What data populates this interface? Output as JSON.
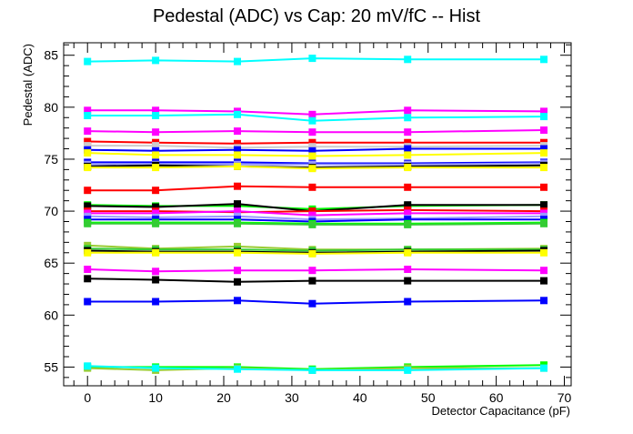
{
  "chart_data": {
    "type": "line",
    "title": "Pedestal (ADC) vs Cap: 20 mV/fC -- Hist",
    "xlabel": "Detector Capacitance (pF)",
    "ylabel": "Pedestal (ADC)",
    "xlim": [
      -3.5,
      71
    ],
    "ylim": [
      53.2,
      86.2
    ],
    "x_ticks": [
      0,
      10,
      20,
      30,
      40,
      50,
      60,
      70
    ],
    "y_ticks": [
      55,
      60,
      65,
      70,
      75,
      80,
      85
    ],
    "grid": false,
    "legend": "none",
    "x": [
      0,
      10,
      22,
      33,
      47,
      67
    ],
    "series": [
      {
        "color": "#00ffff",
        "values": [
          84.4,
          84.5,
          84.4,
          84.7,
          84.6,
          84.6
        ]
      },
      {
        "color": "#ff00ff",
        "values": [
          79.7,
          79.7,
          79.6,
          79.3,
          79.7,
          79.6
        ]
      },
      {
        "color": "#00ffff",
        "values": [
          79.2,
          79.2,
          79.3,
          78.7,
          79.0,
          79.1
        ]
      },
      {
        "color": "#ff00ff",
        "values": [
          77.7,
          77.6,
          77.7,
          77.6,
          77.6,
          77.8
        ]
      },
      {
        "color": "#ff0000",
        "values": [
          76.7,
          76.6,
          76.5,
          76.6,
          76.6,
          76.6
        ]
      },
      {
        "color": "#cccccc",
        "values": [
          76.3,
          76.3,
          76.1,
          76.2,
          76.2,
          76.3
        ]
      },
      {
        "color": "#0000ff",
        "values": [
          75.9,
          75.8,
          75.9,
          75.8,
          76.0,
          76.0
        ]
      },
      {
        "color": "#ffff00",
        "values": [
          75.6,
          75.4,
          75.4,
          75.3,
          75.4,
          75.6
        ]
      },
      {
        "color": "#0000ff",
        "values": [
          74.7,
          74.7,
          74.7,
          74.6,
          74.6,
          74.7
        ]
      },
      {
        "color": "#9999ff",
        "values": [
          74.5,
          74.5,
          74.5,
          74.5,
          74.5,
          74.6
        ]
      },
      {
        "color": "#000000",
        "values": [
          74.3,
          74.4,
          74.3,
          74.2,
          74.3,
          74.4
        ]
      },
      {
        "color": "#ffff00",
        "values": [
          74.2,
          74.2,
          74.3,
          74.1,
          74.2,
          74.2
        ]
      },
      {
        "color": "#ff0000",
        "values": [
          72.0,
          72.0,
          72.4,
          72.3,
          72.3,
          72.3
        ]
      },
      {
        "color": "#00ff00",
        "values": [
          70.6,
          70.5,
          70.5,
          70.2,
          70.5,
          70.6
        ]
      },
      {
        "color": "#000000",
        "values": [
          70.5,
          70.4,
          70.7,
          70.0,
          70.6,
          70.6
        ]
      },
      {
        "color": "#ff0000",
        "values": [
          70.0,
          70.0,
          69.9,
          70.0,
          70.1,
          70.0
        ]
      },
      {
        "color": "#ff00ff",
        "values": [
          69.8,
          69.8,
          70.0,
          69.6,
          69.8,
          69.8
        ]
      },
      {
        "color": "#9999ff",
        "values": [
          69.5,
          69.4,
          69.5,
          69.2,
          69.3,
          69.5
        ]
      },
      {
        "color": "#0000ff",
        "values": [
          69.2,
          69.2,
          69.2,
          69.0,
          69.2,
          69.2
        ]
      },
      {
        "color": "#00ff00",
        "values": [
          68.9,
          68.9,
          68.9,
          68.8,
          68.8,
          68.9
        ]
      },
      {
        "color": "#33cc33",
        "values": [
          68.8,
          68.8,
          68.8,
          68.7,
          68.7,
          68.8
        ]
      },
      {
        "color": "#99cc33",
        "values": [
          66.7,
          66.4,
          66.6,
          66.3,
          66.3,
          66.4
        ]
      },
      {
        "color": "#33cc33",
        "values": [
          66.4,
          66.3,
          66.3,
          66.2,
          66.3,
          66.3
        ]
      },
      {
        "color": "#000000",
        "values": [
          66.2,
          66.1,
          66.1,
          66.0,
          66.1,
          66.2
        ]
      },
      {
        "color": "#ffff00",
        "values": [
          66.0,
          66.0,
          66.0,
          65.9,
          66.0,
          66.0
        ]
      },
      {
        "color": "#ff00ff",
        "values": [
          64.4,
          64.2,
          64.3,
          64.3,
          64.4,
          64.3
        ]
      },
      {
        "color": "#000000",
        "values": [
          63.5,
          63.4,
          63.2,
          63.3,
          63.3,
          63.3
        ]
      },
      {
        "color": "#0000ff",
        "values": [
          61.3,
          61.3,
          61.4,
          61.1,
          61.3,
          61.4
        ]
      },
      {
        "color": "#00ff00",
        "values": [
          55.0,
          55.0,
          55.0,
          54.8,
          55.0,
          55.2
        ]
      },
      {
        "color": "#99cc33",
        "values": [
          54.9,
          54.7,
          54.9,
          54.7,
          54.9,
          54.9
        ]
      },
      {
        "color": "#00ffff",
        "values": [
          55.1,
          54.9,
          54.8,
          54.7,
          54.7,
          54.9
        ]
      }
    ]
  }
}
